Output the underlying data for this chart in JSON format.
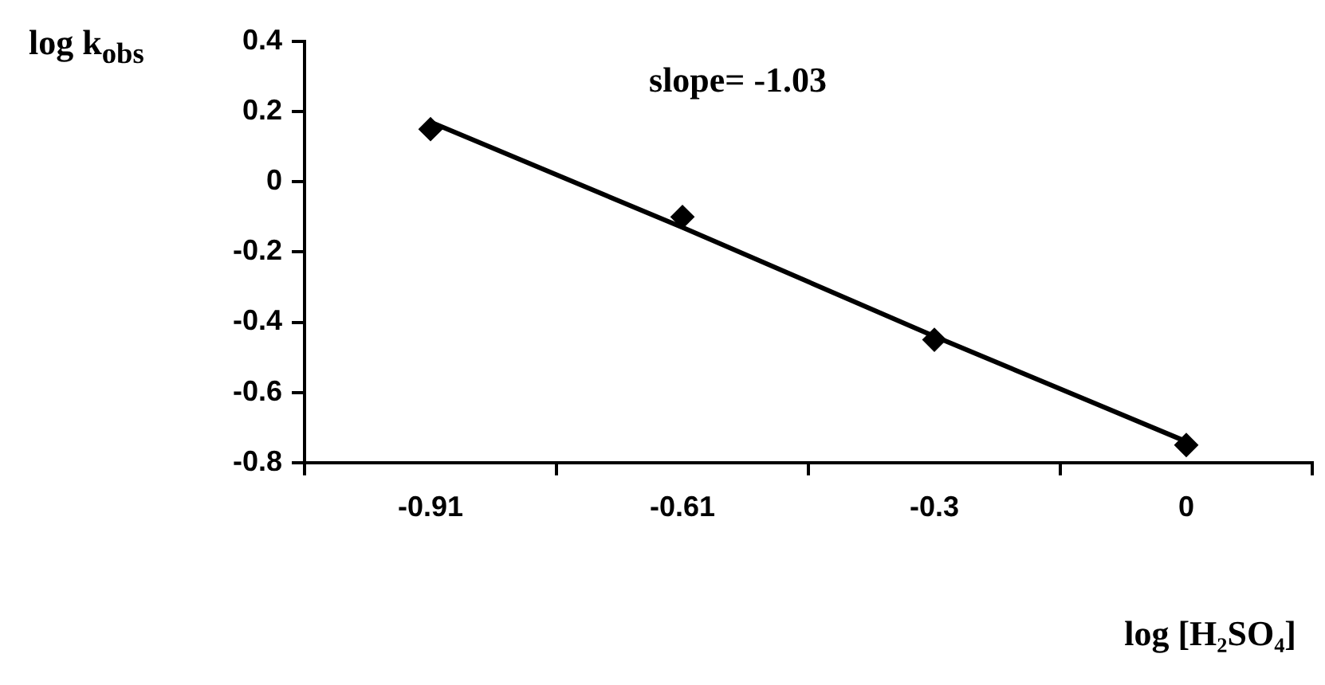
{
  "chart_data": {
    "type": "line",
    "categories": [
      "-0.91",
      "-0.61",
      "-0.3",
      "0"
    ],
    "series": [
      {
        "type": "scatter",
        "color": "#000000",
        "marker": "diamond",
        "values": [
          0.15,
          -0.1,
          -0.45,
          -0.75
        ]
      },
      {
        "color": "#000000",
        "marker": "none",
        "line_style": "solid",
        "values": [
          0.17,
          -0.13,
          -0.44,
          -0.74
        ]
      }
    ],
    "ylim": [
      -0.8,
      0.4
    ],
    "yticks": [
      -0.8,
      -0.6,
      -0.4,
      -0.2,
      0,
      0.2,
      0.4
    ],
    "ylabel": "log k$_{obs}$",
    "xlabel": "log [H₂SO₄]",
    "annotations": [
      "slope= -1.03"
    ],
    "grid": false,
    "legend": false
  }
}
